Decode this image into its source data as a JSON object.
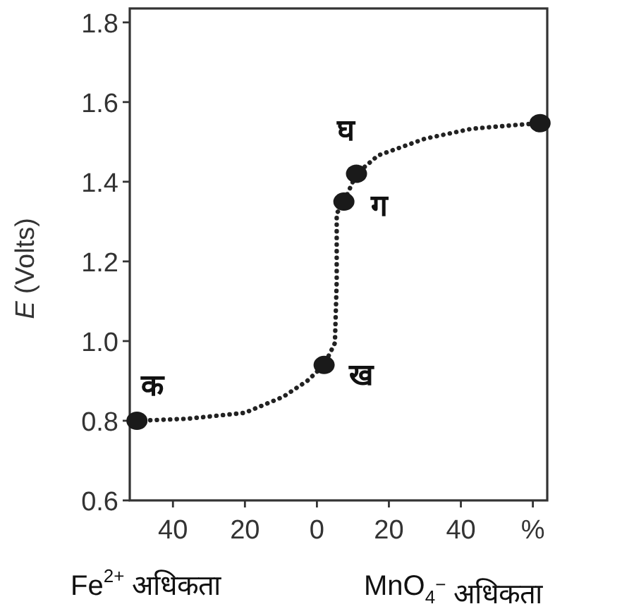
{
  "chart_data": {
    "type": "line",
    "ylabel": "*E* (Volts)",
    "xlim": [
      -52,
      64
    ],
    "ylim": [
      0.6,
      1.835
    ],
    "xticks": [
      {
        "value": -40,
        "label": "40"
      },
      {
        "value": -20,
        "label": "20"
      },
      0,
      20,
      40,
      {
        "value": 60,
        "label": "%"
      }
    ],
    "yticks": [
      {
        "value": 0.6,
        "label": "0.6"
      },
      {
        "value": 0.8,
        "label": "0.8"
      },
      {
        "value": 1.0,
        "label": "1.0"
      },
      {
        "value": 1.2,
        "label": "1.2"
      },
      {
        "value": 1.4,
        "label": "1.4"
      },
      {
        "value": 1.6,
        "label": "1.6"
      },
      {
        "value": 1.8,
        "label": "1.8"
      }
    ],
    "series": [
      {
        "line_style": "dotted",
        "marker": "none",
        "color": "#222222",
        "x": [
          -50,
          -36,
          -20,
          -9.4,
          -2.7,
          2,
          5,
          5.5,
          5.5,
          7.5,
          11,
          17,
          30,
          43,
          56,
          62
        ],
        "values": [
          0.8,
          0.805,
          0.82,
          0.86,
          0.9,
          0.94,
          0.995,
          1.15,
          1.32,
          1.35,
          1.42,
          1.466,
          1.508,
          1.533,
          1.543,
          1.547
        ]
      },
      {
        "type": "scatter",
        "marker": "circle",
        "color": "#1a1a1a",
        "x": [
          -50,
          2,
          7.5,
          11,
          62
        ],
        "values": [
          0.8,
          0.94,
          1.35,
          1.42,
          1.547
        ]
      }
    ],
    "annotations": [
      {
        "text": "क",
        "x": -50,
        "y": 0.8
      },
      {
        "text": "ख",
        "x": 2,
        "y": 0.94
      },
      {
        "text": "ग",
        "x": 7.5,
        "y": 1.35
      },
      {
        "text": "घ",
        "x": 11,
        "y": 1.42
      },
      "Fe$^{2+}$ अधिकता",
      "MnO$_{4}$$^{−}$ अधिकता"
    ]
  }
}
